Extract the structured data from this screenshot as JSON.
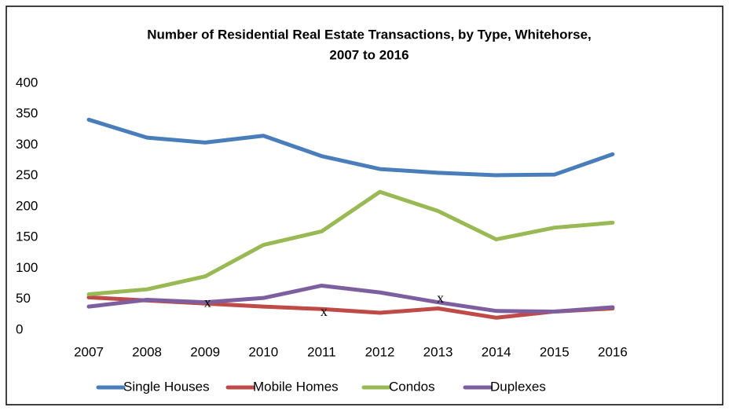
{
  "chart_data": {
    "type": "line",
    "title": [
      "Number of Residential Real Estate Transactions, by Type, Whitehorse,",
      "2007 to 2016"
    ],
    "categories": [
      "2007",
      "2008",
      "2009",
      "2010",
      "2011",
      "2012",
      "2013",
      "2014",
      "2015",
      "2016"
    ],
    "series": [
      {
        "name": "Single Houses",
        "color": "#4a7ebb",
        "values": [
          341,
          312,
          304,
          315,
          282,
          261,
          255,
          251,
          252,
          285
        ]
      },
      {
        "name": "Mobile Homes",
        "color": "#be4b48",
        "values": [
          53,
          48,
          43,
          38,
          34,
          28,
          35,
          20,
          30,
          35
        ]
      },
      {
        "name": "Condos",
        "color": "#98b954",
        "values": [
          58,
          66,
          87,
          138,
          160,
          224,
          193,
          147,
          166,
          174
        ]
      },
      {
        "name": "Duplexes",
        "color": "#7d5fa0",
        "values": [
          38,
          49,
          45,
          52,
          72,
          61,
          45,
          31,
          30,
          37
        ]
      }
    ],
    "annotations": [
      {
        "text": "x",
        "x": "2009",
        "y": 43
      },
      {
        "text": "x",
        "x": "2011",
        "y": 28
      },
      {
        "text": "x",
        "x": "2013",
        "y": 50
      }
    ],
    "ylim": [
      0,
      400
    ],
    "yticks": [
      0,
      50,
      100,
      150,
      200,
      250,
      300,
      350,
      400
    ],
    "grid": false,
    "legend": "bottom"
  }
}
